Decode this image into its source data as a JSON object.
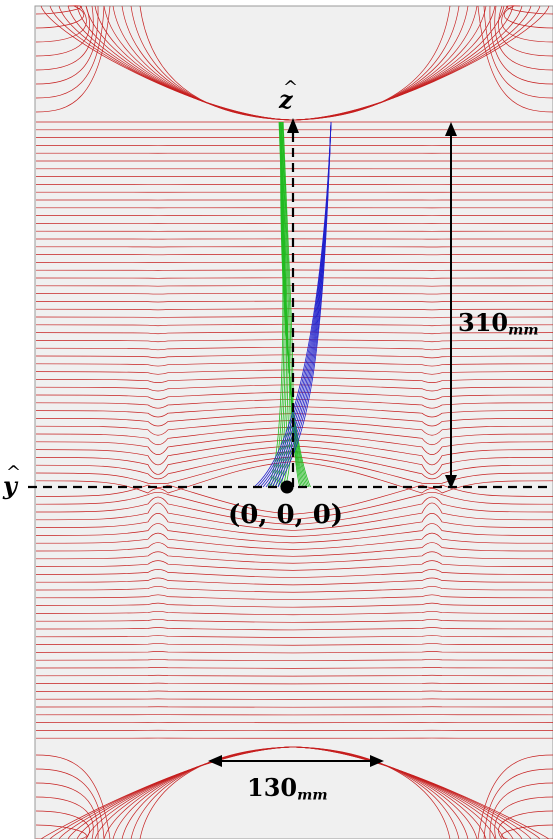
{
  "labels": {
    "z_axis": "z",
    "y_axis": "y",
    "origin": "(0, 0, 0)",
    "height_value": "310",
    "height_unit": "mm",
    "width_value": "130",
    "width_unit": "mm"
  },
  "colors": {
    "background": "#f0f0f0",
    "field_lines": "#c62020",
    "trajectories_green": "#22bb22",
    "trajectories_blue": "#2222cc",
    "axes": "#000000"
  }
}
